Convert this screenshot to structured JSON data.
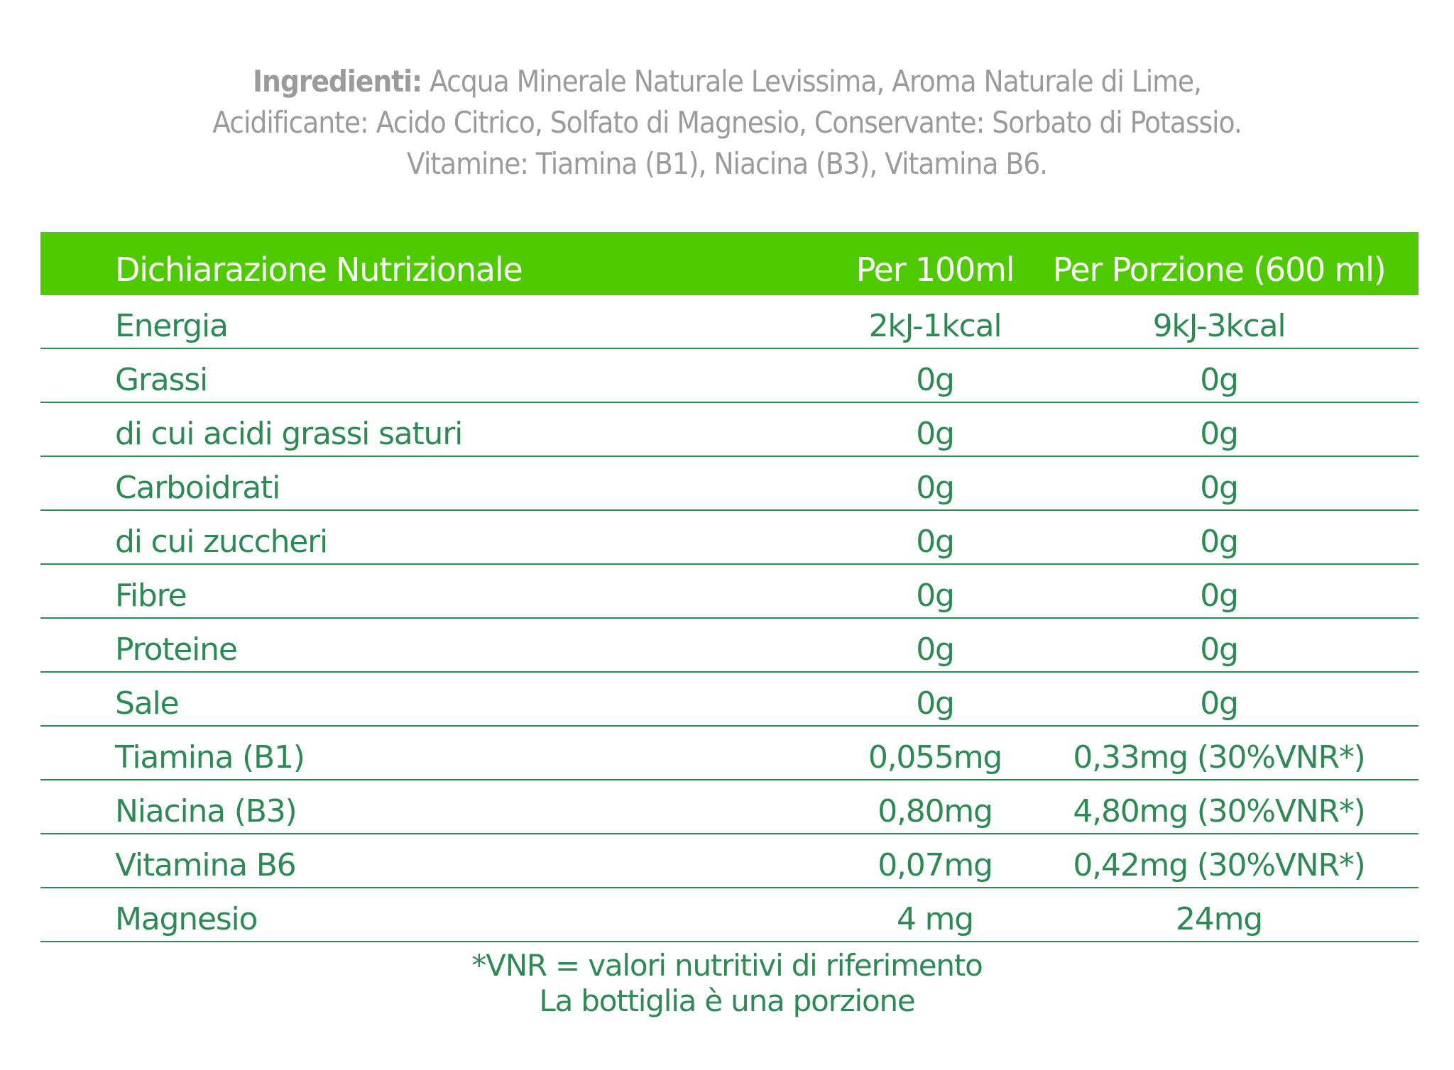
{
  "ingredients": {
    "label": "Ingredienti:",
    "line1": " Acqua Minerale Naturale Levissima, Aroma Naturale di Lime,",
    "line2": "Acidificante: Acido Citrico, Solfato di Magnesio, Conservante: Sorbato di Potassio.",
    "line3": "Vitamine: Tiamina (B1), Niacina (B3), Vitamina B6."
  },
  "table": {
    "header": {
      "name": "Dichiarazione Nutrizionale",
      "per100": "Per 100ml",
      "perPortion": "Per Porzione (600 ml)"
    },
    "rows": [
      {
        "name": "Energia",
        "per100": "2kJ-1kcal",
        "perPortion": "9kJ-3kcal"
      },
      {
        "name": "Grassi",
        "per100": "0g",
        "perPortion": "0g"
      },
      {
        "name": "di cui acidi grassi saturi",
        "per100": "0g",
        "perPortion": "0g"
      },
      {
        "name": "Carboidrati",
        "per100": "0g",
        "perPortion": "0g"
      },
      {
        "name": "di cui zuccheri",
        "per100": "0g",
        "perPortion": "0g"
      },
      {
        "name": "Fibre",
        "per100": "0g",
        "perPortion": "0g"
      },
      {
        "name": "Proteine",
        "per100": "0g",
        "perPortion": "0g"
      },
      {
        "name": "Sale",
        "per100": "0g",
        "perPortion": "0g"
      },
      {
        "name": "Tiamina (B1)",
        "per100": "0,055mg",
        "perPortion": "0,33mg (30%VNR*)"
      },
      {
        "name": "Niacina (B3)",
        "per100": "0,80mg",
        "perPortion": "4,80mg (30%VNR*)"
      },
      {
        "name": "Vitamina B6",
        "per100": "0,07mg",
        "perPortion": "0,42mg (30%VNR*)"
      },
      {
        "name": "Magnesio",
        "per100": "4 mg",
        "perPortion": "24mg"
      }
    ]
  },
  "footnote": {
    "line1": "*VNR = valori nutritivi di riferimento",
    "line2": "La bottiglia è una porzione"
  },
  "colors": {
    "header_green": "#4fca00",
    "text_green": "#2d8a55",
    "ingredients_gray": "#9b9b9b"
  }
}
